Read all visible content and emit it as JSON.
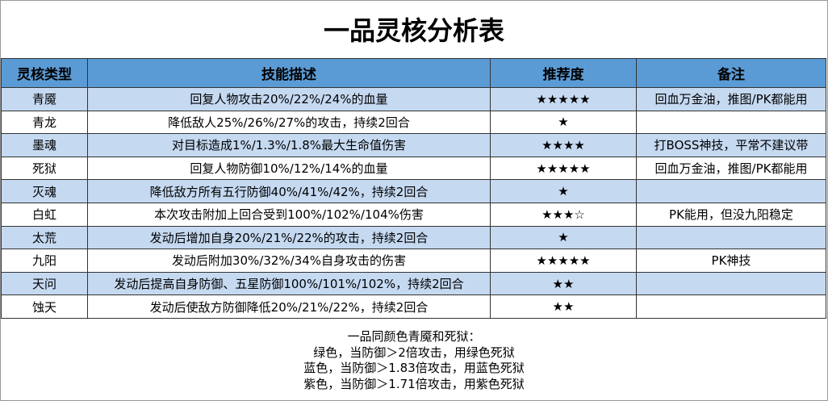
{
  "header": {
    "title": "一品灵核分析表"
  },
  "table": {
    "columns": [
      "灵核类型",
      "技能描述",
      "推荐度",
      "备注"
    ],
    "rows": [
      [
        "青魇",
        "回复人物攻击20%/22%/24%的血量",
        "★★★★★",
        "回血万金油，推图/PK都能用"
      ],
      [
        "青龙",
        "降低敌人25%/26%/27%的攻击，持续2回合",
        "★",
        ""
      ],
      [
        "墨魂",
        "对目标造成1%/1.3%/1.8%最大生命值伤害",
        "★★★★",
        "打BOSS神技，平常不建议带"
      ],
      [
        "死狱",
        "回复人物防御10%/12%/14%的血量",
        "★★★★★",
        "回血万金油，推图/PK都能用"
      ],
      [
        "灭魂",
        "降低敌方所有五行防御40%/41%/42%，持续2回合",
        "★",
        ""
      ],
      [
        "白虹",
        "本次攻击附加上回合受到100%/102%/104%伤害",
        "★★★☆",
        "PK能用，但没九阳稳定"
      ],
      [
        "太荒",
        "发动后增加自身20%/21%/22%的攻击，持续2回合",
        "★",
        ""
      ],
      [
        "九阳",
        "发动后附加30%/32%/34%自身攻击的伤害",
        "★★★★★",
        "PK神技"
      ],
      [
        "天问",
        "发动后提高自身防御、五星防御100%/101%/102%，持续2回合",
        "★★",
        ""
      ],
      [
        "蚀天",
        "发动后使敌方防御降低20%/21%/22%，持续2回合",
        "★★",
        ""
      ]
    ]
  },
  "notes": {
    "lines": [
      "一品同颜色青魇和死狱：",
      "绿色，当防御＞2倍攻击，用绿色死狱",
      "蓝色，当防御＞1.83倍攻击，用蓝色死狱",
      "紫色，当防御＞1.71倍攻击，用紫色死狱"
    ]
  }
}
